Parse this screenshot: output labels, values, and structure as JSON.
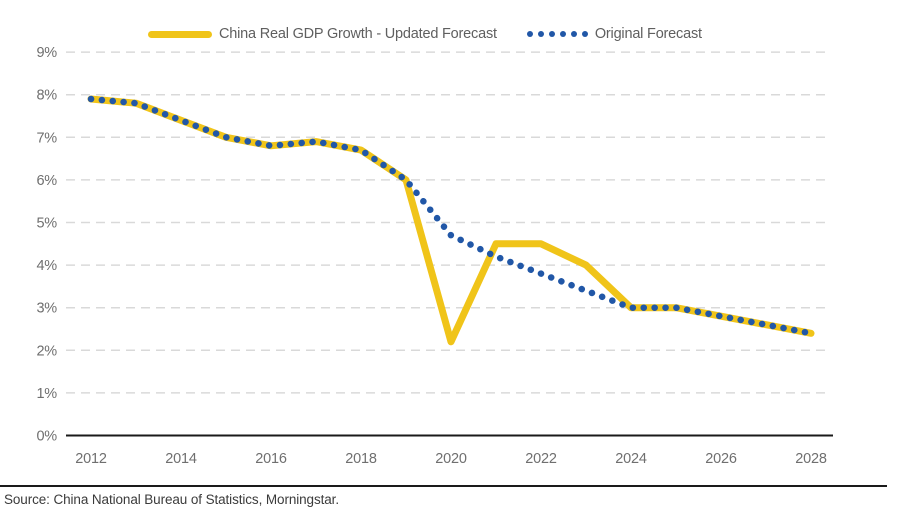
{
  "legend": {
    "updated_label": "China Real GDP Growth - Updated Forecast",
    "original_label": "Original Forecast"
  },
  "source_text": "Source: China National Bureau of Statistics, Morningstar.",
  "colors": {
    "updated_series": "#f0c419",
    "original_series": "#2157a7",
    "gridline": "#d9d9d9",
    "axis_line": "#1a1a1a",
    "tick_label": "#6f6f6f",
    "legend_text": "#5f5f5f",
    "source_text": "#3b3b3b"
  },
  "icons": {
    "updated_swatch": "yellow-line-swatch",
    "original_swatch": "blue-dotted-swatch"
  },
  "chart_data": {
    "type": "line",
    "title": "",
    "xlabel": "",
    "ylabel": "",
    "x": [
      2012,
      2013,
      2014,
      2015,
      2016,
      2017,
      2018,
      2019,
      2020,
      2021,
      2022,
      2023,
      2024,
      2025,
      2026,
      2027,
      2028
    ],
    "series": [
      {
        "name": "China Real GDP Growth - Updated Forecast",
        "style": "solid",
        "color": "#f0c419",
        "values": [
          7.9,
          7.8,
          7.4,
          7.0,
          6.8,
          6.9,
          6.7,
          6.0,
          2.2,
          4.5,
          4.5,
          4.0,
          3.0,
          3.0,
          2.8,
          2.6,
          2.4
        ]
      },
      {
        "name": "Original Forecast",
        "style": "dotted",
        "color": "#2157a7",
        "values": [
          7.9,
          7.8,
          7.4,
          7.0,
          6.8,
          6.9,
          6.7,
          6.0,
          4.7,
          4.2,
          3.8,
          3.4,
          3.0,
          3.0,
          2.8,
          2.6,
          2.4
        ]
      }
    ],
    "ylim": [
      0,
      9
    ],
    "y_ticks": [
      0,
      1,
      2,
      3,
      4,
      5,
      6,
      7,
      8,
      9
    ],
    "y_tick_labels": [
      "0%",
      "1%",
      "2%",
      "3%",
      "4%",
      "5%",
      "6%",
      "7%",
      "8%",
      "9%"
    ],
    "x_ticks": [
      2012,
      2014,
      2016,
      2018,
      2020,
      2022,
      2024,
      2026,
      2028
    ],
    "grid": "horizontal-dashed",
    "legend_position": "top"
  }
}
